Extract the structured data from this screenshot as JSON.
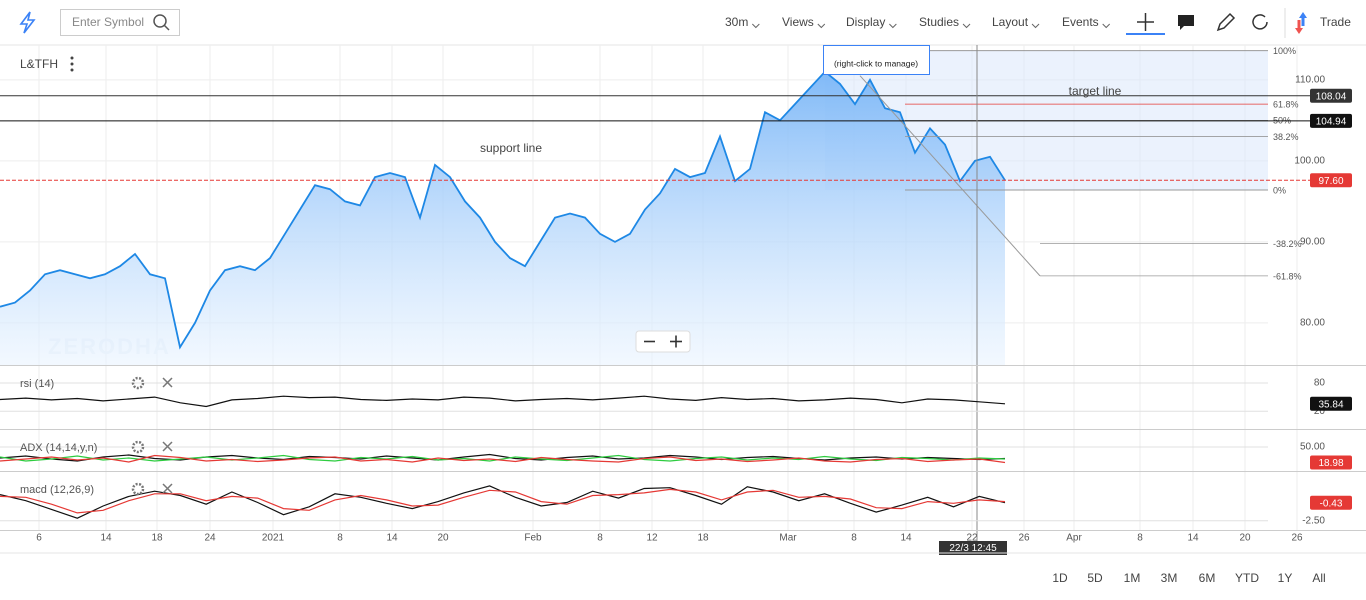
{
  "toolbar": {
    "search_placeholder": "Enter Symbol",
    "menus": [
      "30m",
      "Views",
      "Display",
      "Studies",
      "Layout",
      "Events"
    ],
    "trade": "Trade"
  },
  "symbol": "L&TFH",
  "watermark": "ZERODHA",
  "chart_data": {
    "type": "area",
    "color": "#1e88e5",
    "x_labels": [
      "6",
      "14",
      "18",
      "24",
      "2021",
      "8",
      "14",
      "20",
      "Feb",
      "8",
      "12",
      "18",
      "Mar",
      "8",
      "14",
      "22",
      "26",
      "Apr",
      "8",
      "14",
      "20",
      "26"
    ],
    "ylim": [
      74.8,
      114.3
    ],
    "yticks": [
      {
        "value": 80,
        "label": "80.00"
      },
      {
        "value": 90,
        "label": "90.00"
      },
      {
        "value": 100,
        "label": "100.00"
      },
      {
        "value": 110,
        "label": "110.00"
      }
    ],
    "grid": true,
    "values": [
      82,
      82.5,
      84,
      86,
      86.5,
      86,
      85.5,
      86,
      87,
      88.5,
      86,
      85.5,
      77,
      80,
      84,
      86.5,
      87,
      86.5,
      88,
      91,
      94,
      97,
      96.5,
      95,
      94.5,
      98,
      98.5,
      98,
      93,
      99.5,
      98,
      95,
      93,
      90,
      88,
      87,
      90,
      93,
      93.5,
      93,
      91,
      90,
      91,
      94,
      96,
      99,
      98,
      98.5,
      103,
      97.5,
      99,
      106,
      105,
      107,
      109,
      111,
      109.5,
      107,
      110,
      106.5,
      106,
      101,
      104,
      102,
      97.5,
      100,
      100.5,
      97.6
    ],
    "fib_levels": [
      {
        "value": 113.6,
        "label": "100%"
      },
      {
        "value": 107.0,
        "label": "61.8%"
      },
      {
        "value": 105.0,
        "label": "50%"
      },
      {
        "value": 103.0,
        "label": "38.2%"
      },
      {
        "value": 96.4,
        "label": "0%"
      },
      {
        "value": 89.8,
        "label": "-38.2%"
      },
      {
        "value": 85.8,
        "label": "-61.8%"
      }
    ],
    "price_lines": [
      {
        "value": 108.04,
        "color": "#333333"
      },
      {
        "value": 104.94,
        "color": "#111111"
      },
      {
        "value": 97.6,
        "label": "97.60",
        "color": "#e53935"
      }
    ],
    "annotations": [
      "support line",
      "target line",
      "(right-click to manage)"
    ],
    "crosshair_label": "22/3 12:45"
  },
  "indicators": [
    {
      "type": "line",
      "title": "rsi (14)",
      "ylim": [
        -20,
        112
      ],
      "yticks": [
        80,
        20
      ],
      "badge_color": "#111111",
      "series": [
        {
          "color": "#111111",
          "values": [
            45,
            48,
            44,
            47,
            42,
            46,
            50,
            38,
            30,
            44,
            47,
            52,
            49,
            50,
            45,
            43,
            46,
            44,
            50,
            48,
            42,
            45,
            47,
            44,
            48,
            52,
            46,
            43,
            49,
            45,
            47,
            42,
            44,
            48,
            45,
            38,
            46,
            44,
            40,
            35.84
          ]
        }
      ],
      "badge_series": 0
    },
    {
      "type": "line",
      "title": "ADX (14,14,y,n)",
      "ylim": [
        0,
        80
      ],
      "yticks": [
        {
          "value": 50,
          "label": "50.00"
        }
      ],
      "badge_color": "#e53935",
      "series": [
        {
          "color": "#111111",
          "values": [
            28,
            32,
            26,
            22,
            30,
            34,
            27,
            24,
            30,
            33,
            28,
            25,
            31,
            29,
            26,
            32,
            28,
            24,
            30,
            35,
            27,
            24,
            29,
            32,
            26,
            28,
            33,
            30,
            25,
            29,
            31,
            27,
            24,
            28,
            30,
            26,
            29,
            27,
            25,
            27
          ]
        },
        {
          "color": "#2ecc40",
          "values": [
            30,
            22,
            26,
            32,
            24,
            28,
            22,
            26,
            30,
            24,
            28,
            33,
            25,
            22,
            29,
            26,
            31,
            24,
            27,
            22,
            30,
            26,
            23,
            28,
            33,
            25,
            22,
            27,
            30,
            24,
            28,
            25,
            31,
            26,
            23,
            29,
            27,
            24,
            28,
            26
          ]
        },
        {
          "color": "#e53935",
          "values": [
            22,
            26,
            30,
            24,
            28,
            20,
            33,
            29,
            22,
            25,
            21,
            24,
            28,
            30,
            22,
            25,
            20,
            28,
            23,
            26,
            21,
            29,
            25,
            22,
            20,
            27,
            30,
            23,
            26,
            21,
            24,
            28,
            22,
            20,
            25,
            27,
            21,
            24,
            26,
            18.98
          ]
        }
      ],
      "badge_series": 2
    },
    {
      "type": "line",
      "title": "macd (12,26,9)",
      "ylim": [
        -3.56,
        2.87
      ],
      "yticks": [
        {
          "value": -2.5,
          "label": "-2.50"
        }
      ],
      "badge_color": "#e53935",
      "series": [
        {
          "color": "#111111",
          "values": [
            0.5,
            -0.2,
            -1.2,
            -2.2,
            -0.8,
            0.3,
            0.9,
            0.4,
            -0.6,
            0.8,
            -0.4,
            -1.8,
            -0.9,
            0.6,
            0.2,
            -0.5,
            -1.1,
            -0.3,
            0.7,
            1.5,
            0.2,
            -0.8,
            -0.4,
            0.9,
            0.1,
            1.2,
            1.3,
            0.4,
            -0.6,
            1.4,
            0.8,
            -0.2,
            0.6,
            -0.5,
            -1.5,
            -0.7,
            0.2,
            -0.9,
            0.3,
            -0.43
          ]
        },
        {
          "color": "#e53935",
          "values": [
            0.3,
            0.2,
            -0.6,
            -1.6,
            -1.3,
            -0.2,
            0.6,
            0.6,
            -0.2,
            0.3,
            0.1,
            -1.1,
            -1.3,
            -0.1,
            0.4,
            -0.1,
            -0.8,
            -0.7,
            0.2,
            1.0,
            0.8,
            -0.3,
            -0.6,
            0.4,
            0.5,
            0.7,
            1.1,
            0.8,
            -0.1,
            0.8,
            1.0,
            0.2,
            0.3,
            0.0,
            -1.0,
            -1.1,
            -0.3,
            -0.5,
            -0.1,
            -0.3
          ]
        }
      ],
      "badge_series": 0
    }
  ],
  "ranges": [
    "1D",
    "5D",
    "1M",
    "3M",
    "6M",
    "YTD",
    "1Y",
    "All"
  ]
}
